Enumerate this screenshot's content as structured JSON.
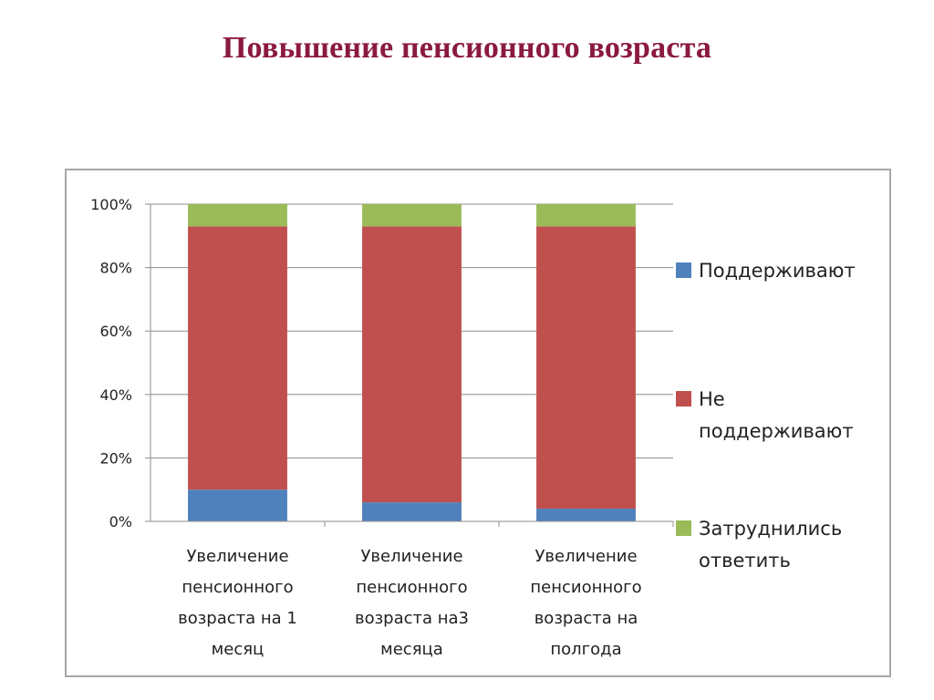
{
  "slide": {
    "title": "Повышение пенсионного возраста"
  },
  "chart_data": {
    "type": "bar",
    "stacked": "percent",
    "title": "",
    "xlabel": "",
    "ylabel": "",
    "ylim": [
      0,
      100
    ],
    "y_ticks": [
      "0%",
      "20%",
      "40%",
      "60%",
      "80%",
      "100%"
    ],
    "grid": true,
    "legend_position": "right",
    "categories": [
      [
        "Увеличение",
        "пенсионного",
        "возраста на 1",
        "месяц"
      ],
      [
        "Увеличение",
        "пенсионного",
        "возраста на3",
        "месяца"
      ],
      [
        "Увеличение",
        "пенсионного",
        "возраста на",
        "полгода"
      ]
    ],
    "series": [
      {
        "name": [
          "Поддерживают"
        ],
        "color": "#4f81bd",
        "values": [
          10,
          6,
          4
        ]
      },
      {
        "name": [
          "Не",
          "поддерживают"
        ],
        "color": "#c0504d",
        "values": [
          83,
          87,
          89
        ]
      },
      {
        "name": [
          "Затруднились",
          "ответить"
        ],
        "color": "#9bbb59",
        "values": [
          7,
          7,
          7
        ]
      }
    ]
  }
}
